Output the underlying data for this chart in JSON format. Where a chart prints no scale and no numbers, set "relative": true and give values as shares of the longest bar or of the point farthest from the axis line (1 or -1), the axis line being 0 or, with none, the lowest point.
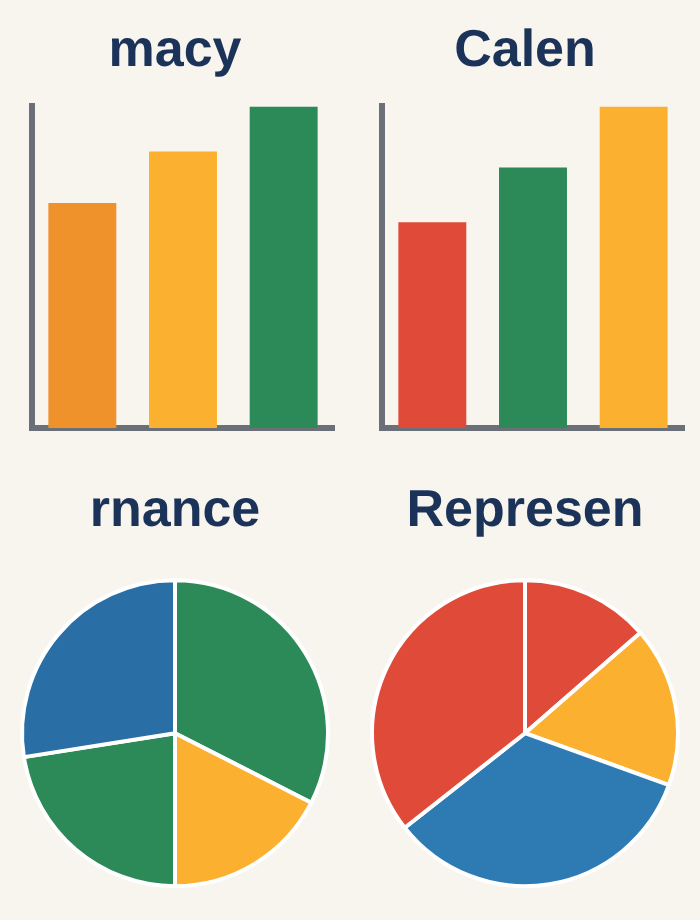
{
  "chart_data": [
    {
      "type": "bar",
      "title": "macy",
      "relative": true,
      "categories": [
        null,
        null,
        null
      ],
      "values": [
        0.7,
        0.86,
        1
      ],
      "colors": [
        "#f0922b",
        "#fbb12f",
        "#2b8a57"
      ],
      "legend": false
    },
    {
      "type": "bar",
      "title": "Calen",
      "relative": true,
      "categories": [
        null,
        null,
        null
      ],
      "values": [
        0.64,
        0.81,
        1
      ],
      "colors": [
        "#e04a38",
        "#2b8a57",
        "#fbb12f"
      ],
      "legend": false
    },
    {
      "type": "pie",
      "title": "rnance",
      "categories": [
        null,
        null,
        null,
        null
      ],
      "values": [
        32.5,
        17.5,
        22.5,
        27.5
      ],
      "colors": [
        "#2b8a57",
        "#fbb12f",
        "#2b8a57",
        "#2a6ea6"
      ],
      "legend": false
    },
    {
      "type": "pie",
      "title": "Represen",
      "categories": [
        null,
        null,
        null,
        null
      ],
      "values": [
        13.6,
        16.9,
        33.9,
        35.6
      ],
      "colors": [
        "#e04a38",
        "#fbb12f",
        "#2e7bb4",
        "#e04a38"
      ],
      "legend": false
    }
  ]
}
